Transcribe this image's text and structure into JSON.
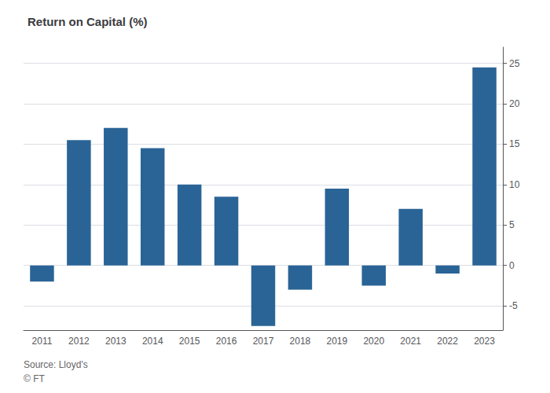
{
  "chart_data": {
    "type": "bar",
    "title": "Return on Capital (%)",
    "categories": [
      "2011",
      "2012",
      "2013",
      "2014",
      "2015",
      "2016",
      "2017",
      "2018",
      "2019",
      "2020",
      "2021",
      "2022",
      "2023"
    ],
    "values": [
      -2.0,
      15.5,
      17.0,
      14.5,
      10.0,
      8.5,
      -7.5,
      -3.0,
      9.5,
      -2.5,
      7.0,
      -1.0,
      24.5
    ],
    "color": "#2a6496",
    "ylim": [
      -8,
      27
    ],
    "yticks": [
      -5,
      0,
      5,
      10,
      15,
      20,
      25
    ],
    "grid": true,
    "annotations": [
      "Source: Lloyd's",
      "© FT"
    ]
  }
}
